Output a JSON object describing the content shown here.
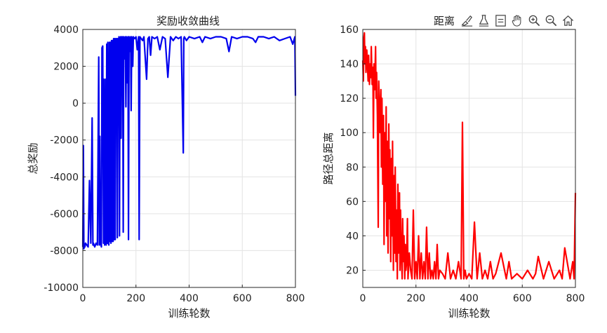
{
  "toolbar": {
    "overlay_label": "距离",
    "buttons": [
      "brush-icon",
      "export-icon",
      "datatip-icon",
      "pan-hand-icon",
      "zoom-in-icon",
      "zoom-out-icon",
      "home-icon"
    ]
  },
  "chart_data": [
    {
      "type": "line",
      "title": "奖励收敛曲线",
      "xlabel": "训练轮数",
      "ylabel": "总奖励",
      "xlim": [
        0,
        800
      ],
      "ylim": [
        -10000,
        4000
      ],
      "xticks": [
        0,
        200,
        400,
        600,
        800
      ],
      "yticks": [
        -10000,
        -8000,
        -6000,
        -4000,
        -2000,
        0,
        2000,
        4000
      ],
      "xtick_labels": [
        "0",
        "200",
        "400",
        "600",
        "800"
      ],
      "ytick_labels": [
        "-10000",
        "-8000",
        "-6000",
        "-4000",
        "-2000",
        "0",
        "2000",
        "4000"
      ],
      "grid": true,
      "color": "#0000ee",
      "series": [
        {
          "x": [
            0,
            2,
            4,
            6,
            8,
            10,
            15,
            20,
            25,
            30,
            35,
            38,
            40,
            42,
            45,
            50,
            55,
            60,
            62,
            64,
            66,
            68,
            70,
            72,
            75,
            78,
            80,
            82,
            84,
            86,
            88,
            90,
            92,
            94,
            96,
            98,
            100,
            102,
            104,
            106,
            108,
            110,
            112,
            114,
            116,
            118,
            120,
            122,
            124,
            126,
            128,
            130,
            132,
            134,
            136,
            138,
            140,
            142,
            144,
            146,
            148,
            150,
            152,
            154,
            156,
            158,
            160,
            162,
            164,
            166,
            168,
            170,
            172,
            174,
            176,
            178,
            180,
            182,
            184,
            186,
            188,
            190,
            195,
            200,
            205,
            210,
            212,
            215,
            220,
            225,
            230,
            240,
            245,
            250,
            255,
            260,
            270,
            280,
            290,
            300,
            310,
            320,
            330,
            340,
            350,
            360,
            370,
            378,
            380,
            382,
            390,
            400,
            420,
            440,
            450,
            460,
            480,
            500,
            520,
            540,
            550,
            560,
            580,
            600,
            620,
            640,
            650,
            660,
            680,
            700,
            720,
            740,
            760,
            780,
            790,
            798,
            800
          ],
          "y": [
            -7800,
            -2300,
            -7900,
            -7700,
            -7800,
            -7600,
            -7700,
            -7800,
            -4200,
            -7600,
            -800,
            -7700,
            -7600,
            -7700,
            -7800,
            -7600,
            -7700,
            2500,
            -7700,
            -1800,
            -7600,
            -7700,
            -7800,
            3000,
            3100,
            -7600,
            1300,
            -7700,
            -7600,
            1300,
            -7700,
            3200,
            -7600,
            3300,
            -7600,
            -7700,
            3300,
            -7500,
            3300,
            -7600,
            3400,
            -7500,
            3400,
            -7500,
            3500,
            -7400,
            3500,
            -7400,
            3500,
            2000,
            3500,
            -7300,
            3500,
            -600,
            3600,
            -7200,
            3500,
            3600,
            -1900,
            3600,
            3500,
            3600,
            -7000,
            3600,
            2400,
            3500,
            3600,
            -200,
            3600,
            3500,
            1100,
            3600,
            -7400,
            3600,
            2800,
            3500,
            3600,
            -400,
            3600,
            3500,
            2000,
            3600,
            3500,
            3600,
            2900,
            3600,
            -7400,
            3600,
            3500,
            3400,
            3600,
            1300,
            3500,
            3600,
            2600,
            3600,
            3500,
            3600,
            2900,
            3600,
            3500,
            1400,
            3600,
            3400,
            3600,
            3500,
            3600,
            -2700,
            3500,
            3600,
            3400,
            3600,
            3500,
            3600,
            3300,
            3600,
            3500,
            3600,
            3600,
            3500,
            2800,
            3600,
            3500,
            3600,
            3600,
            3500,
            3300,
            3600,
            3600,
            3500,
            3600,
            3400,
            3500,
            3600,
            3200,
            3600,
            400
          ]
        }
      ]
    },
    {
      "type": "line",
      "title": "",
      "xlabel": "训练轮数",
      "ylabel": "路径总距离",
      "xlim": [
        0,
        800
      ],
      "ylim": [
        10,
        160
      ],
      "xticks": [
        0,
        200,
        400,
        600,
        800
      ],
      "yticks": [
        20,
        40,
        60,
        80,
        100,
        120,
        140,
        160
      ],
      "xtick_labels": [
        "0",
        "200",
        "400",
        "600",
        "800"
      ],
      "ytick_labels": [
        "20",
        "40",
        "60",
        "80",
        "100",
        "120",
        "140",
        "160"
      ],
      "grid": true,
      "color": "#ff0000",
      "series": [
        {
          "x": [
            0,
            2,
            4,
            6,
            8,
            10,
            12,
            15,
            18,
            20,
            22,
            25,
            28,
            30,
            32,
            35,
            38,
            40,
            42,
            45,
            48,
            50,
            52,
            55,
            58,
            60,
            62,
            65,
            68,
            70,
            72,
            75,
            78,
            80,
            82,
            85,
            88,
            90,
            92,
            95,
            98,
            100,
            102,
            105,
            108,
            110,
            112,
            115,
            118,
            120,
            122,
            125,
            128,
            130,
            132,
            135,
            138,
            140,
            142,
            145,
            148,
            150,
            152,
            155,
            158,
            160,
            162,
            165,
            168,
            170,
            175,
            180,
            185,
            190,
            195,
            200,
            205,
            210,
            215,
            220,
            225,
            230,
            235,
            240,
            245,
            250,
            255,
            260,
            265,
            270,
            275,
            280,
            285,
            290,
            300,
            310,
            320,
            330,
            340,
            350,
            360,
            370,
            375,
            380,
            385,
            390,
            400,
            410,
            420,
            430,
            440,
            450,
            460,
            470,
            480,
            490,
            500,
            520,
            540,
            550,
            560,
            580,
            600,
            620,
            640,
            650,
            660,
            680,
            700,
            720,
            740,
            750,
            760,
            780,
            790,
            795,
            800
          ],
          "y": [
            142,
            130,
            155,
            158,
            140,
            150,
            135,
            148,
            138,
            130,
            145,
            128,
            140,
            132,
            150,
            128,
            138,
            97,
            140,
            125,
            150,
            120,
            135,
            110,
            45,
            130,
            118,
            100,
            125,
            80,
            120,
            70,
            110,
            35,
            100,
            60,
            115,
            40,
            95,
            30,
            105,
            50,
            90,
            25,
            85,
            40,
            95,
            20,
            75,
            30,
            80,
            25,
            55,
            15,
            70,
            30,
            65,
            20,
            55,
            30,
            15,
            50,
            25,
            40,
            15,
            35,
            20,
            25,
            50,
            15,
            30,
            20,
            15,
            55,
            15,
            25,
            15,
            40,
            15,
            30,
            15,
            25,
            15,
            45,
            15,
            30,
            15,
            20,
            15,
            25,
            15,
            35,
            15,
            20,
            18,
            15,
            30,
            15,
            20,
            15,
            25,
            15,
            106,
            15,
            20,
            15,
            18,
            15,
            48,
            15,
            30,
            15,
            20,
            15,
            25,
            15,
            18,
            30,
            15,
            25,
            15,
            18,
            15,
            20,
            15,
            18,
            28,
            15,
            25,
            15,
            20,
            15,
            33,
            15,
            25,
            15,
            65
          ]
        }
      ]
    }
  ]
}
